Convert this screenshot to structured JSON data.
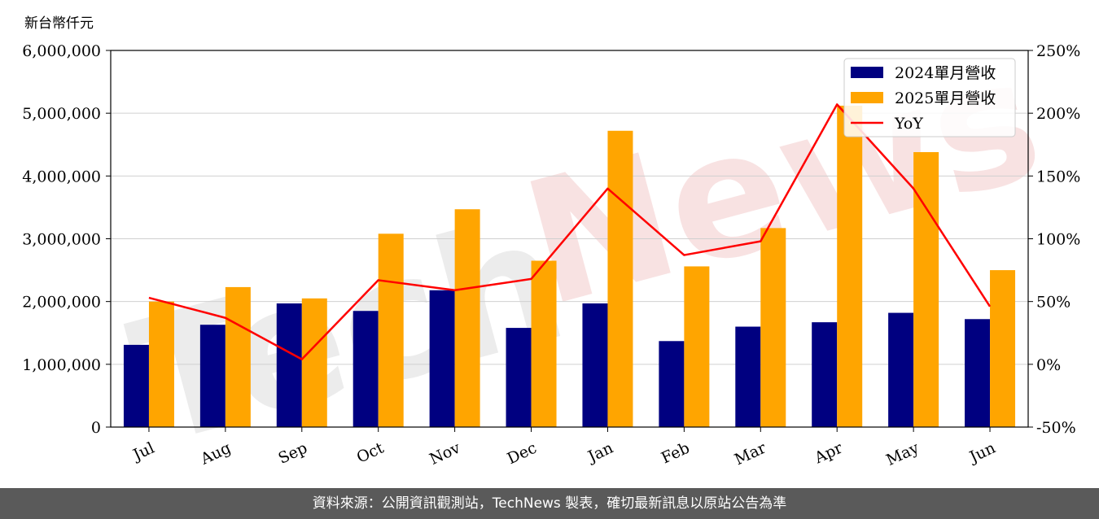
{
  "chart_data": {
    "type": "bar",
    "y_unit_label": "新台幣仟元",
    "categories": [
      "Jul",
      "Aug",
      "Sep",
      "Oct",
      "Nov",
      "Dec",
      "Jan",
      "Feb",
      "Mar",
      "Apr",
      "May",
      "Jun"
    ],
    "series": [
      {
        "name": "2024單月營收",
        "type": "bar",
        "color": "#000080",
        "values": [
          1310000,
          1630000,
          1970000,
          1850000,
          2180000,
          1580000,
          1970000,
          1370000,
          1600000,
          1670000,
          1820000,
          1720000
        ]
      },
      {
        "name": "2025單月營收",
        "type": "bar",
        "color": "#FFA500",
        "values": [
          2000000,
          2230000,
          2050000,
          3080000,
          3470000,
          2650000,
          4720000,
          2560000,
          3170000,
          5120000,
          4380000,
          2500000
        ]
      },
      {
        "name": "YoY",
        "type": "line",
        "axis": "right",
        "color": "#FF0000",
        "values": [
          53,
          37,
          4,
          67,
          59,
          68,
          140,
          87,
          98,
          207,
          140,
          46
        ]
      }
    ],
    "ylim": [
      0,
      6000000
    ],
    "y2lim": [
      -50,
      250
    ],
    "y_ticks": [
      "0",
      "1,000,000",
      "2,000,000",
      "3,000,000",
      "4,000,000",
      "5,000,000",
      "6,000,000"
    ],
    "y2_ticks": [
      "-50%",
      "0%",
      "50%",
      "100%",
      "150%",
      "200%",
      "250%"
    ],
    "grid": "horizontal",
    "legend_position": "top-right"
  },
  "watermark": {
    "text_a": "Tech",
    "text_b": "News"
  },
  "footer": {
    "text": "資料來源：公開資訊觀測站，TechNews 製表，確切最新訊息以原站公告為準"
  }
}
